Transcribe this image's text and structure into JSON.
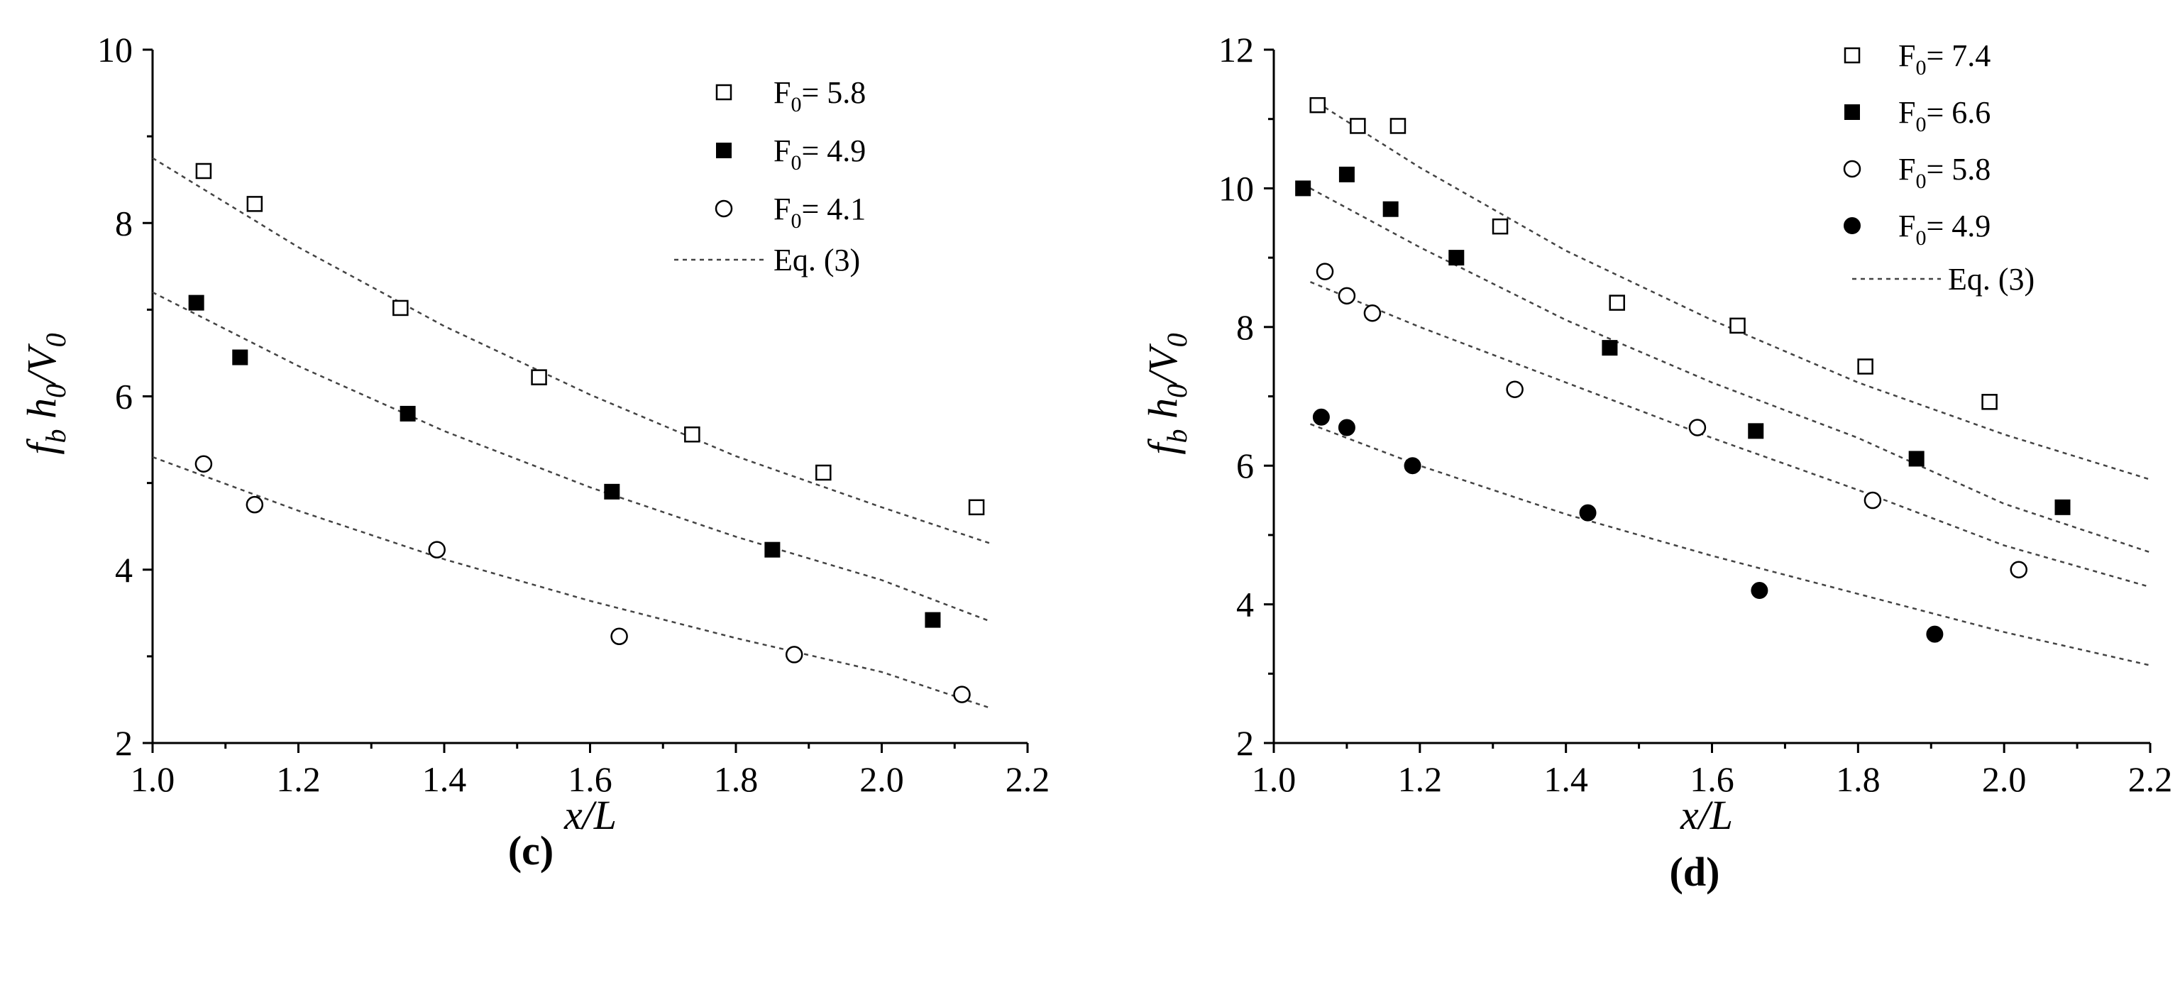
{
  "chart_data": [
    {
      "type": "scatter",
      "panel": "(c)",
      "xlabel": "x/L",
      "ylabel": "f_b h_0/V_0",
      "xlim": [
        1.0,
        2.2
      ],
      "ylim": [
        2,
        10
      ],
      "xticks": [
        "1.0",
        "1.2",
        "1.4",
        "1.6",
        "1.8",
        "2.0",
        "2.2"
      ],
      "yticks": [
        "2",
        "4",
        "6",
        "8",
        "10"
      ],
      "legend_position": "top-right",
      "fit_label": "Eq. (3)",
      "series": [
        {
          "name": "F0 = 5.8",
          "label_main": "F",
          "label_sub": "0",
          "label_value": "= 5.8",
          "marker": "open-square",
          "points": [
            [
              1.07,
              8.6
            ],
            [
              1.14,
              8.22
            ],
            [
              1.34,
              7.02
            ],
            [
              1.53,
              6.22
            ],
            [
              1.74,
              5.56
            ],
            [
              1.92,
              5.12
            ],
            [
              2.13,
              4.72
            ]
          ],
          "fit": [
            [
              1.0,
              8.75
            ],
            [
              1.2,
              7.72
            ],
            [
              1.4,
              6.81
            ],
            [
              1.6,
              6.02
            ],
            [
              1.8,
              5.31
            ],
            [
              2.0,
              4.72
            ],
            [
              2.15,
              4.3
            ]
          ]
        },
        {
          "name": "F0 = 4.9",
          "label_main": "F",
          "label_sub": "0",
          "label_value": "= 4.9",
          "marker": "filled-square",
          "points": [
            [
              1.06,
              7.08
            ],
            [
              1.12,
              6.45
            ],
            [
              1.35,
              5.8
            ],
            [
              1.63,
              4.9
            ],
            [
              1.85,
              4.23
            ],
            [
              2.07,
              3.42
            ]
          ],
          "fit": [
            [
              1.0,
              7.2
            ],
            [
              1.2,
              6.35
            ],
            [
              1.4,
              5.6
            ],
            [
              1.6,
              4.95
            ],
            [
              1.8,
              4.38
            ],
            [
              2.0,
              3.88
            ],
            [
              2.15,
              3.4
            ]
          ]
        },
        {
          "name": "F0 = 4.1",
          "label_main": "F",
          "label_sub": "0",
          "label_value": "= 4.1",
          "marker": "open-circle",
          "points": [
            [
              1.07,
              5.22
            ],
            [
              1.14,
              4.75
            ],
            [
              1.39,
              4.23
            ],
            [
              1.64,
              3.23
            ],
            [
              1.88,
              3.02
            ],
            [
              2.11,
              2.56
            ]
          ],
          "fit": [
            [
              1.0,
              5.3
            ],
            [
              1.2,
              4.68
            ],
            [
              1.4,
              4.12
            ],
            [
              1.6,
              3.64
            ],
            [
              1.8,
              3.21
            ],
            [
              2.0,
              2.82
            ],
            [
              2.15,
              2.4
            ]
          ]
        }
      ]
    },
    {
      "type": "scatter",
      "panel": "(d)",
      "xlabel": "x/L",
      "ylabel": "f_b h_0/V_0",
      "xlim": [
        1.0,
        2.2
      ],
      "ylim": [
        2,
        12
      ],
      "xticks": [
        "1.0",
        "1.2",
        "1.4",
        "1.6",
        "1.8",
        "2.0",
        "2.2"
      ],
      "yticks": [
        "2",
        "4",
        "6",
        "8",
        "10",
        "12"
      ],
      "legend_position": "top-right",
      "fit_label": "Eq. (3)",
      "series": [
        {
          "name": "F0 = 7.4",
          "label_main": "F",
          "label_sub": "0",
          "label_value": "= 7.4",
          "marker": "open-square",
          "points": [
            [
              1.06,
              11.2
            ],
            [
              1.115,
              10.9
            ],
            [
              1.17,
              10.9
            ],
            [
              1.31,
              9.45
            ],
            [
              1.47,
              8.35
            ],
            [
              1.635,
              8.02
            ],
            [
              1.81,
              7.43
            ],
            [
              1.98,
              6.92
            ]
          ],
          "fit": [
            [
              1.05,
              11.3
            ],
            [
              1.2,
              10.3
            ],
            [
              1.4,
              9.1
            ],
            [
              1.6,
              8.1
            ],
            [
              1.8,
              7.2
            ],
            [
              2.0,
              6.45
            ],
            [
              2.2,
              5.8
            ]
          ]
        },
        {
          "name": "F0 = 6.6",
          "label_main": "F",
          "label_sub": "0",
          "label_value": "= 6.6",
          "marker": "filled-square",
          "points": [
            [
              1.04,
              10.0
            ],
            [
              1.1,
              10.2
            ],
            [
              1.16,
              9.7
            ],
            [
              1.25,
              9.0
            ],
            [
              1.46,
              7.7
            ],
            [
              1.66,
              6.5
            ],
            [
              1.88,
              6.1
            ],
            [
              2.08,
              5.4
            ]
          ],
          "fit": [
            [
              1.05,
              10.0
            ],
            [
              1.2,
              9.15
            ],
            [
              1.4,
              8.1
            ],
            [
              1.6,
              7.2
            ],
            [
              1.8,
              6.4
            ],
            [
              2.0,
              5.45
            ],
            [
              2.2,
              4.75
            ]
          ]
        },
        {
          "name": "F0 = 5.8",
          "label_main": "F",
          "label_sub": "0",
          "label_value": "= 5.8",
          "marker": "open-circle",
          "points": [
            [
              1.07,
              8.8
            ],
            [
              1.1,
              8.45
            ],
            [
              1.135,
              8.2
            ],
            [
              1.33,
              7.1
            ],
            [
              1.58,
              6.55
            ],
            [
              1.82,
              5.5
            ],
            [
              2.02,
              4.5
            ]
          ],
          "fit": [
            [
              1.05,
              8.65
            ],
            [
              1.2,
              8.0
            ],
            [
              1.4,
              7.2
            ],
            [
              1.6,
              6.4
            ],
            [
              1.8,
              5.65
            ],
            [
              2.0,
              4.85
            ],
            [
              2.2,
              4.25
            ]
          ]
        },
        {
          "name": "F0 = 4.9",
          "label_main": "F",
          "label_sub": "0",
          "label_value": "= 4.9",
          "marker": "filled-circle",
          "points": [
            [
              1.065,
              6.7
            ],
            [
              1.1,
              6.55
            ],
            [
              1.19,
              6.0
            ],
            [
              1.43,
              5.32
            ],
            [
              1.665,
              4.2
            ],
            [
              1.905,
              3.57
            ]
          ],
          "fit": [
            [
              1.05,
              6.6
            ],
            [
              1.2,
              6.0
            ],
            [
              1.4,
              5.3
            ],
            [
              1.6,
              4.7
            ],
            [
              1.8,
              4.15
            ],
            [
              2.0,
              3.6
            ],
            [
              2.2,
              3.12
            ]
          ]
        }
      ]
    }
  ]
}
